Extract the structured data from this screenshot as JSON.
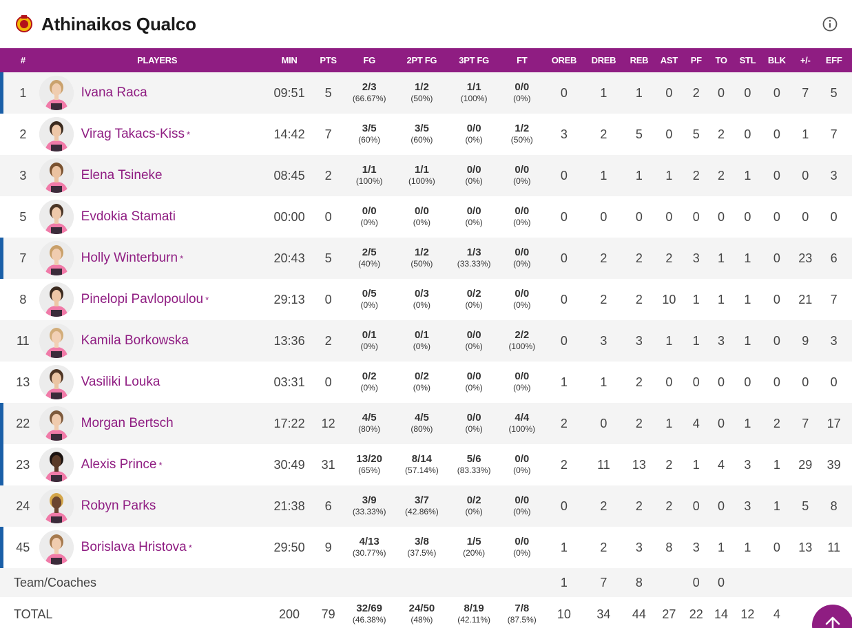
{
  "team": {
    "name": "Athinaikos Qualco",
    "logo_icon": "team-crest-icon",
    "info_icon": "info-icon"
  },
  "colors": {
    "accent": "#8f1d82",
    "starter_bar": "#1a5fa8"
  },
  "columns": [
    "#",
    "PLAYERS",
    "MIN",
    "PTS",
    "FG",
    "2PT FG",
    "3PT FG",
    "FT",
    "OREB",
    "DREB",
    "REB",
    "AST",
    "PF",
    "TO",
    "STL",
    "BLK",
    "+/-",
    "EFF"
  ],
  "players": [
    {
      "num": "1",
      "name": "Ivana Raca",
      "star": "",
      "starter": true,
      "min": "09:51",
      "pts": "5",
      "fg": "2/3",
      "fg_pct": "(66.67%)",
      "p2": "1/2",
      "p2_pct": "(50%)",
      "p3": "1/1",
      "p3_pct": "(100%)",
      "ft": "0/0",
      "ft_pct": "(0%)",
      "oreb": "0",
      "dreb": "1",
      "reb": "1",
      "ast": "0",
      "pf": "2",
      "to": "0",
      "stl": "0",
      "blk": "0",
      "pm": "7",
      "eff": "5",
      "skin": "#f0cdb0",
      "hair": "#caa26d"
    },
    {
      "num": "2",
      "name": "Virag Takacs-Kiss",
      "star": "*",
      "starter": false,
      "min": "14:42",
      "pts": "7",
      "fg": "3/5",
      "fg_pct": "(60%)",
      "p2": "3/5",
      "p2_pct": "(60%)",
      "p3": "0/0",
      "p3_pct": "(0%)",
      "ft": "1/2",
      "ft_pct": "(50%)",
      "oreb": "3",
      "dreb": "2",
      "reb": "5",
      "ast": "0",
      "pf": "5",
      "to": "2",
      "stl": "0",
      "blk": "0",
      "pm": "1",
      "eff": "7",
      "skin": "#eec7a8",
      "hair": "#3a2a1e"
    },
    {
      "num": "3",
      "name": "Elena Tsineke",
      "star": "",
      "starter": false,
      "min": "08:45",
      "pts": "2",
      "fg": "1/1",
      "fg_pct": "(100%)",
      "p2": "1/1",
      "p2_pct": "(100%)",
      "p3": "0/0",
      "p3_pct": "(0%)",
      "ft": "0/0",
      "ft_pct": "(0%)",
      "oreb": "0",
      "dreb": "1",
      "reb": "1",
      "ast": "1",
      "pf": "2",
      "to": "2",
      "stl": "1",
      "blk": "0",
      "pm": "0",
      "eff": "3",
      "skin": "#ebc2a0",
      "hair": "#7a5230"
    },
    {
      "num": "5",
      "name": "Evdokia Stamati",
      "star": "",
      "starter": false,
      "min": "00:00",
      "pts": "0",
      "fg": "0/0",
      "fg_pct": "(0%)",
      "p2": "0/0",
      "p2_pct": "(0%)",
      "p3": "0/0",
      "p3_pct": "(0%)",
      "ft": "0/0",
      "ft_pct": "(0%)",
      "oreb": "0",
      "dreb": "0",
      "reb": "0",
      "ast": "0",
      "pf": "0",
      "to": "0",
      "stl": "0",
      "blk": "0",
      "pm": "0",
      "eff": "0",
      "skin": "#eec8aa",
      "hair": "#4a3526"
    },
    {
      "num": "7",
      "name": "Holly Winterburn",
      "star": "*",
      "starter": true,
      "min": "20:43",
      "pts": "5",
      "fg": "2/5",
      "fg_pct": "(40%)",
      "p2": "1/2",
      "p2_pct": "(50%)",
      "p3": "1/3",
      "p3_pct": "(33.33%)",
      "ft": "0/0",
      "ft_pct": "(0%)",
      "oreb": "0",
      "dreb": "2",
      "reb": "2",
      "ast": "2",
      "pf": "3",
      "to": "1",
      "stl": "1",
      "blk": "0",
      "pm": "23",
      "eff": "6",
      "skin": "#f0ccb0",
      "hair": "#c9a06a"
    },
    {
      "num": "8",
      "name": "Pinelopi Pavlopoulou",
      "star": "*",
      "starter": false,
      "min": "29:13",
      "pts": "0",
      "fg": "0/5",
      "fg_pct": "(0%)",
      "p2": "0/3",
      "p2_pct": "(0%)",
      "p3": "0/2",
      "p3_pct": "(0%)",
      "ft": "0/0",
      "ft_pct": "(0%)",
      "oreb": "0",
      "dreb": "2",
      "reb": "2",
      "ast": "10",
      "pf": "1",
      "to": "1",
      "stl": "1",
      "blk": "0",
      "pm": "21",
      "eff": "7",
      "skin": "#eec6a6",
      "hair": "#3b2a1f"
    },
    {
      "num": "11",
      "name": "Kamila Borkowska",
      "star": "",
      "starter": false,
      "min": "13:36",
      "pts": "2",
      "fg": "0/1",
      "fg_pct": "(0%)",
      "p2": "0/1",
      "p2_pct": "(0%)",
      "p3": "0/0",
      "p3_pct": "(0%)",
      "ft": "2/2",
      "ft_pct": "(100%)",
      "oreb": "0",
      "dreb": "3",
      "reb": "3",
      "ast": "1",
      "pf": "1",
      "to": "3",
      "stl": "1",
      "blk": "0",
      "pm": "9",
      "eff": "3",
      "skin": "#f2d0b5",
      "hair": "#d2ad7a"
    },
    {
      "num": "13",
      "name": "Vasiliki Louka",
      "star": "",
      "starter": false,
      "min": "03:31",
      "pts": "0",
      "fg": "0/2",
      "fg_pct": "(0%)",
      "p2": "0/2",
      "p2_pct": "(0%)",
      "p3": "0/0",
      "p3_pct": "(0%)",
      "ft": "0/0",
      "ft_pct": "(0%)",
      "oreb": "1",
      "dreb": "1",
      "reb": "2",
      "ast": "0",
      "pf": "0",
      "to": "0",
      "stl": "0",
      "blk": "0",
      "pm": "0",
      "eff": "0",
      "skin": "#ebc4a3",
      "hair": "#4e3524"
    },
    {
      "num": "22",
      "name": "Morgan Bertsch",
      "star": "",
      "starter": true,
      "min": "17:22",
      "pts": "12",
      "fg": "4/5",
      "fg_pct": "(80%)",
      "p2": "4/5",
      "p2_pct": "(80%)",
      "p3": "0/0",
      "p3_pct": "(0%)",
      "ft": "4/4",
      "ft_pct": "(100%)",
      "oreb": "2",
      "dreb": "0",
      "reb": "2",
      "ast": "1",
      "pf": "4",
      "to": "0",
      "stl": "1",
      "blk": "2",
      "pm": "7",
      "eff": "17",
      "skin": "#f0cbae",
      "hair": "#7d5a3c"
    },
    {
      "num": "23",
      "name": "Alexis Prince",
      "star": "*",
      "starter": true,
      "min": "30:49",
      "pts": "31",
      "fg": "13/20",
      "fg_pct": "(65%)",
      "p2": "8/14",
      "p2_pct": "(57.14%)",
      "p3": "5/6",
      "p3_pct": "(83.33%)",
      "ft": "0/0",
      "ft_pct": "(0%)",
      "oreb": "2",
      "dreb": "11",
      "reb": "13",
      "ast": "2",
      "pf": "1",
      "to": "4",
      "stl": "3",
      "blk": "1",
      "pm": "29",
      "eff": "39",
      "skin": "#5a3a28",
      "hair": "#1a1210"
    },
    {
      "num": "24",
      "name": "Robyn Parks",
      "star": "",
      "starter": false,
      "min": "21:38",
      "pts": "6",
      "fg": "3/9",
      "fg_pct": "(33.33%)",
      "p2": "3/7",
      "p2_pct": "(42.86%)",
      "p3": "0/2",
      "p3_pct": "(0%)",
      "ft": "0/0",
      "ft_pct": "(0%)",
      "oreb": "0",
      "dreb": "2",
      "reb": "2",
      "ast": "2",
      "pf": "0",
      "to": "0",
      "stl": "3",
      "blk": "1",
      "pm": "5",
      "eff": "8",
      "skin": "#6b4530",
      "hair": "#d4a64a"
    },
    {
      "num": "45",
      "name": "Borislava Hristova",
      "star": "*",
      "starter": true,
      "min": "29:50",
      "pts": "9",
      "fg": "4/13",
      "fg_pct": "(30.77%)",
      "p2": "3/8",
      "p2_pct": "(37.5%)",
      "p3": "1/5",
      "p3_pct": "(20%)",
      "ft": "0/0",
      "ft_pct": "(0%)",
      "oreb": "1",
      "dreb": "2",
      "reb": "3",
      "ast": "8",
      "pf": "3",
      "to": "1",
      "stl": "1",
      "blk": "0",
      "pm": "13",
      "eff": "11",
      "skin": "#f0ccaf",
      "hair": "#a67a4e"
    }
  ],
  "team_row": {
    "label": "Team/Coaches",
    "oreb": "1",
    "dreb": "7",
    "reb": "8",
    "ast": "",
    "pf": "0",
    "to": "0"
  },
  "total_row": {
    "label": "TOTAL",
    "min": "200",
    "pts": "79",
    "fg": "32/69",
    "fg_pct": "(46.38%)",
    "p2": "24/50",
    "p2_pct": "(48%)",
    "p3": "8/19",
    "p3_pct": "(42.11%)",
    "ft": "7/8",
    "ft_pct": "(87.5%)",
    "oreb": "10",
    "dreb": "34",
    "reb": "44",
    "ast": "27",
    "pf": "22",
    "to": "14",
    "stl": "12",
    "blk": "4"
  },
  "scroll_top": {
    "icon": "arrow-up-icon"
  }
}
